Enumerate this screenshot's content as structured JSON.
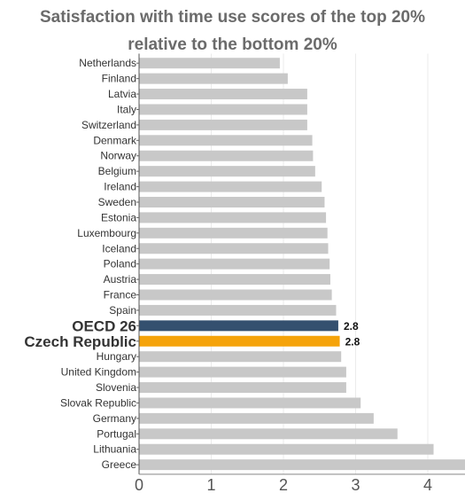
{
  "chart_data": {
    "type": "bar",
    "orientation": "horizontal",
    "title_lines": [
      "Satisfaction with time use scores of the top 20%",
      "relative to the bottom 20%"
    ],
    "categories": [
      "Netherlands",
      "Finland",
      "Latvia",
      "Italy",
      "Switzerland",
      "Denmark",
      "Norway",
      "Belgium",
      "Ireland",
      "Sweden",
      "Estonia",
      "Luxembourg",
      "Iceland",
      "Poland",
      "Austria",
      "France",
      "Spain",
      "OECD 26",
      "Czech Republic",
      "Hungary",
      "United Kingdom",
      "Slovenia",
      "Slovak Republic",
      "Germany",
      "Portugal",
      "Lithuania",
      "Greece"
    ],
    "values": [
      1.95,
      2.06,
      2.33,
      2.33,
      2.33,
      2.4,
      2.41,
      2.44,
      2.53,
      2.57,
      2.59,
      2.61,
      2.62,
      2.64,
      2.65,
      2.67,
      2.73,
      2.76,
      2.78,
      2.8,
      2.87,
      2.87,
      3.07,
      3.25,
      3.58,
      4.08,
      4.6
    ],
    "highlights": {
      "OECD 26": {
        "color": "#34506f",
        "data_label": "2.8"
      },
      "Czech Republic": {
        "color": "#f5a30a",
        "data_label": "2.8"
      }
    },
    "default_color": "#c8c8c8",
    "x_ticks": [
      0,
      1,
      2,
      3,
      4
    ],
    "xlim": [
      0,
      4.5
    ],
    "grid": true,
    "xlabel": "",
    "ylabel": ""
  }
}
